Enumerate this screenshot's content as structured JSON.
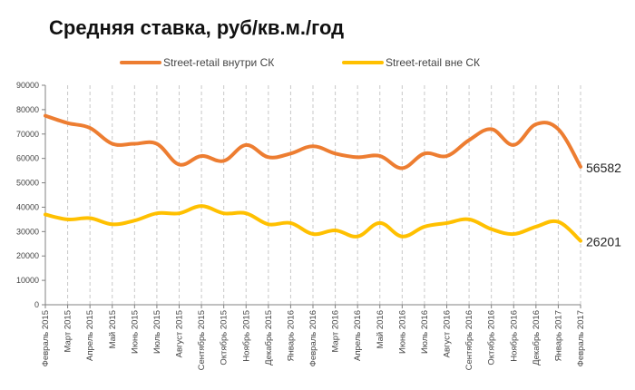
{
  "colors": {
    "series_1": "#ed7d31",
    "series_2": "#ffc000",
    "axis": "#808080",
    "gridline": "#c8c8c8",
    "text": "#444444"
  },
  "chart_data": {
    "type": "line",
    "title": "Средняя ставка, руб/кв.м./год",
    "legend_position": "top",
    "grid": true,
    "y_gridlines": false,
    "x_gridlines": "dashed",
    "xlabel": "",
    "ylabel": "",
    "ylim": [
      0,
      90000
    ],
    "y_ticks": [
      "0",
      "10000",
      "20000",
      "30000",
      "40000",
      "50000",
      "60000",
      "70000",
      "80000",
      "90000"
    ],
    "categories": [
      "Февраль 2015",
      "Март 2015",
      "Апрель 2015",
      "Май 2015",
      "Июнь 2015",
      "Июль 2015",
      "Август 2015",
      "Сентябрь 2015",
      "Октябрь 2015",
      "Ноябрь 2015",
      "Декабрь 2015",
      "Январь 2016",
      "Февраль 2016",
      "Март 2016",
      "Апрель 2016",
      "Май 2016",
      "Июнь 2016",
      "Июль 2016",
      "Август 2016",
      "Сентябрь 2016",
      "Октябрь 2016",
      "Ноябрь 2016",
      "Декабрь 2016",
      "Январь 2017",
      "Февраль 2017"
    ],
    "series": [
      {
        "name": "Street-retail внутри СК",
        "color": "#ed7d31",
        "values": [
          77500,
          74500,
          72500,
          66000,
          66000,
          66000,
          57500,
          61000,
          59000,
          65500,
          60500,
          62000,
          65000,
          62000,
          60500,
          61000,
          56000,
          62000,
          61000,
          67500,
          72000,
          65500,
          74000,
          72000,
          56582
        ],
        "end_label": "56582"
      },
      {
        "name": "Street-retail  вне СК",
        "color": "#ffc000",
        "values": [
          37000,
          35000,
          35500,
          33000,
          34500,
          37500,
          37500,
          40500,
          37500,
          37500,
          33000,
          33500,
          29000,
          30500,
          28000,
          33500,
          28000,
          32000,
          33500,
          35000,
          31000,
          29000,
          32000,
          34000,
          26201
        ],
        "end_label": "26201"
      }
    ]
  }
}
